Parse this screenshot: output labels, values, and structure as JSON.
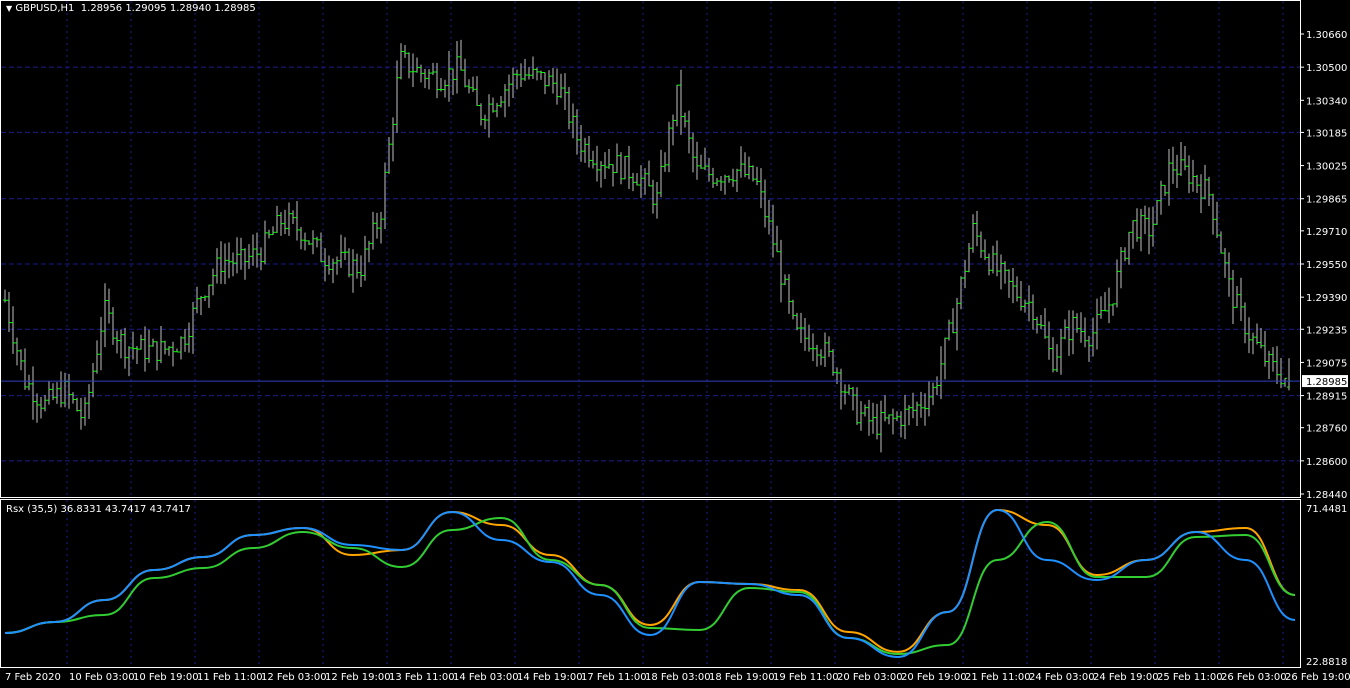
{
  "header": {
    "symbol_label": "GBPUSD,H1",
    "ohlc": "1.28956 1.29095 1.28940 1.28985",
    "menu_icon": "triangle-down-icon"
  },
  "indicator": {
    "label": "Rsx (35,5) 36.8331 43.7417 43.7417"
  },
  "colors": {
    "background": "#000000",
    "grid": "#1c1c8c",
    "bar": "#c0c0c0",
    "bar_tick": "#00ff00",
    "price_line": "#3040c0",
    "rsx_fast": "#1e90ff",
    "rsx_signal_down": "#ffa500",
    "rsx_signal_up": "#32cd32"
  },
  "chart_data": [
    {
      "type": "ohlc",
      "title": "GBPUSD,H1",
      "ylim": [
        1.2844,
        1.3066
      ],
      "y_ticks": [
        "1.30660",
        "1.30500",
        "1.30340",
        "1.30185",
        "1.30025",
        "1.29865",
        "1.29710",
        "1.29550",
        "1.29390",
        "1.29235",
        "1.29075",
        "1.28915",
        "1.28760",
        "1.28600",
        "1.28440"
      ],
      "current_price": "1.28985",
      "last_bar": {
        "open": 1.28956,
        "high": 1.29095,
        "low": 1.2894,
        "close": 1.28985
      },
      "x_ticks": [
        "7 Feb 2020",
        "10 Feb 03:00",
        "10 Feb 19:00",
        "11 Feb 11:00",
        "12 Feb 03:00",
        "12 Feb 19:00",
        "13 Feb 11:00",
        "14 Feb 03:00",
        "14 Feb 19:00",
        "17 Feb 11:00",
        "18 Feb 03:00",
        "18 Feb 19:00",
        "19 Feb 11:00",
        "20 Feb 03:00",
        "20 Feb 19:00",
        "21 Feb 11:00",
        "24 Feb 03:00",
        "24 Feb 19:00",
        "25 Feb 11:00",
        "26 Feb 03:00",
        "26 Feb 19:00"
      ],
      "close_path": [
        1.29376,
        1.2899,
        1.2887,
        1.28942,
        1.28797,
        1.29328,
        1.29159,
        1.29135,
        1.29135,
        1.29183,
        1.29424,
        1.29569,
        1.2956,
        1.29618,
        1.29762,
        1.29714,
        1.29594,
        1.2956,
        1.2953,
        1.29786,
        1.30535,
        1.30476,
        1.30448,
        1.30496,
        1.30269,
        1.30366,
        1.30476,
        1.30448,
        1.30414,
        1.30148,
        1.30061,
        1.30028,
        1.2998,
        1.29859,
        1.30366,
        1.29994,
        1.2998,
        1.30004,
        1.29955,
        1.29618,
        1.29207,
        1.29183,
        1.29062,
        1.28845,
        1.28773,
        1.28797,
        1.28845,
        1.28942,
        1.2928,
        1.29714,
        1.29545,
        1.29424,
        1.29352,
        1.29087,
        1.29256,
        1.29207,
        1.29376,
        1.29738,
        1.29714,
        1.30028,
        1.2998,
        1.29883,
        1.29424,
        1.29207,
        1.29062,
        1.28985
      ],
      "grid": true
    },
    {
      "type": "line",
      "title": "Rsx (35,5)",
      "ylim": [
        22.8818,
        71.4481
      ],
      "y_ticks": [
        "71.4481",
        "22.8818"
      ],
      "series": [
        {
          "color": "#ffa500",
          "values": [
            31.78,
            35.27,
            42.25,
            51.77,
            55.9,
            62.88,
            65.1,
            56.53,
            58.12,
            70.18,
            66.05,
            56.53,
            47.01,
            34.31,
            47.96,
            47.33,
            45.42,
            32.09,
            25.79,
            38.44,
            70.81,
            66.05,
            50.18,
            54.95,
            63.83,
            65.1,
            43.84
          ]
        },
        {
          "color": "#32cd32",
          "values": [
            31.78,
            35.27,
            37.49,
            49.23,
            52.41,
            58.75,
            63.83,
            58.75,
            52.72,
            64.46,
            68.28,
            54.95,
            47.01,
            33.36,
            32.72,
            46.06,
            44.79,
            30.19,
            25.11,
            27.97,
            54.95,
            67.01,
            49.55,
            49.55,
            62.24,
            62.88,
            43.84
          ]
        },
        {
          "color": "#1e90ff",
          "values": [
            31.78,
            35.27,
            42.25,
            51.77,
            55.9,
            62.88,
            65.1,
            59.71,
            58.12,
            70.18,
            61.29,
            54.31,
            43.84,
            31.14,
            47.96,
            47.33,
            43.84,
            30.19,
            24.16,
            38.44,
            70.81,
            54.95,
            48.6,
            54.95,
            63.83,
            54.95,
            35.9
          ]
        }
      ]
    }
  ]
}
